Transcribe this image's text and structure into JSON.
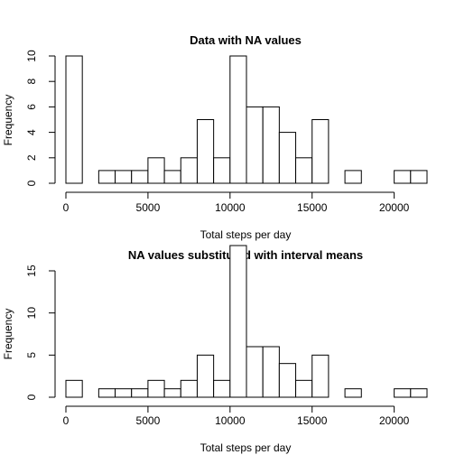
{
  "chart_data": [
    {
      "type": "bar",
      "subtype": "histogram",
      "title": "Data with NA values",
      "xlabel": "Total steps per day",
      "ylabel": "Frequency",
      "bin_width": 1000,
      "bins_start": [
        0,
        1000,
        2000,
        3000,
        4000,
        5000,
        6000,
        7000,
        8000,
        9000,
        10000,
        11000,
        12000,
        13000,
        14000,
        15000,
        16000,
        17000,
        18000,
        19000,
        20000,
        21000
      ],
      "values": [
        10,
        0,
        1,
        1,
        1,
        2,
        1,
        2,
        5,
        2,
        10,
        6,
        6,
        4,
        2,
        5,
        0,
        1,
        0,
        0,
        1,
        1
      ],
      "xlim": [
        0,
        22000
      ],
      "ylim": [
        0,
        10
      ],
      "xticks": [
        0,
        5000,
        10000,
        15000,
        20000
      ],
      "xtick_labels": [
        "0",
        "5000",
        "10000",
        "15000",
        "20000"
      ],
      "yticks": [
        0,
        2,
        4,
        6,
        8,
        10
      ],
      "ytick_labels": [
        "0",
        "2",
        "4",
        "6",
        "8",
        "10"
      ],
      "grid": false
    },
    {
      "type": "bar",
      "subtype": "histogram",
      "title": "NA values substituted with interval means",
      "xlabel": "Total steps per day",
      "ylabel": "Frequency",
      "bin_width": 1000,
      "bins_start": [
        0,
        1000,
        2000,
        3000,
        4000,
        5000,
        6000,
        7000,
        8000,
        9000,
        10000,
        11000,
        12000,
        13000,
        14000,
        15000,
        16000,
        17000,
        18000,
        19000,
        20000,
        21000
      ],
      "values": [
        2,
        0,
        1,
        1,
        1,
        2,
        1,
        2,
        5,
        2,
        18,
        6,
        6,
        4,
        2,
        5,
        0,
        1,
        0,
        0,
        1,
        1
      ],
      "xlim": [
        0,
        22000
      ],
      "ylim": [
        0,
        15
      ],
      "xticks": [
        0,
        5000,
        10000,
        15000,
        20000
      ],
      "xtick_labels": [
        "0",
        "5000",
        "10000",
        "15000",
        "20000"
      ],
      "yticks": [
        0,
        5,
        10,
        15
      ],
      "ytick_labels": [
        "0",
        "5",
        "10",
        "15"
      ],
      "grid": false
    }
  ]
}
